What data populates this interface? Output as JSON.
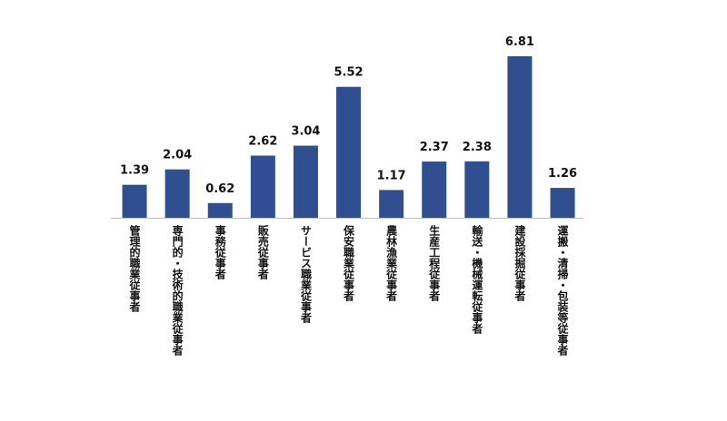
{
  "chart_data": {
    "type": "bar",
    "categories": [
      "管理的職業従事者",
      "専門的・技術的職業従事者",
      "事務従事者",
      "販売従事者",
      "サービス職業従事者",
      "保安職業従事者",
      "農林漁業従事者",
      "生産工程従事者",
      "輸送・機械運転従事者",
      "建設採掘従事者",
      "運搬・清掃・包装等従事者"
    ],
    "values": [
      1.39,
      2.04,
      0.62,
      2.62,
      3.04,
      5.52,
      1.17,
      2.37,
      2.38,
      6.81,
      1.26
    ],
    "color": "#2f4f91"
  }
}
